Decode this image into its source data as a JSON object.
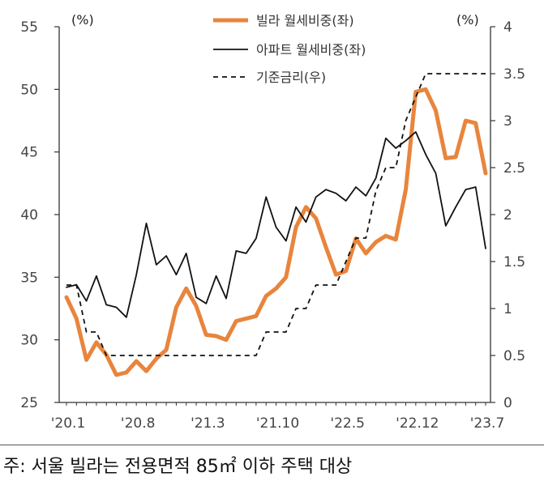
{
  "chart_data": {
    "type": "line",
    "title": "",
    "y_left": {
      "unit": "(%)",
      "ticks": [
        "55",
        "50",
        "45",
        "40",
        "35",
        "30",
        "25"
      ],
      "range": [
        25,
        55
      ]
    },
    "y_right": {
      "unit": "(%)",
      "ticks": [
        "4",
        "3.5",
        "3",
        "2.5",
        "2",
        "1.5",
        "1",
        "0.5",
        "0"
      ],
      "range": [
        0,
        4
      ]
    },
    "x_labels": [
      "'20.1",
      "'20.8",
      "'21.3",
      "'21.10",
      "'22.5",
      "'22.12",
      "'23.7"
    ],
    "x_label_index": [
      0,
      7,
      14,
      21,
      28,
      35,
      42
    ],
    "n_points": 43,
    "series": [
      {
        "name": "빌라 월세비중(좌)",
        "axis": "left",
        "color": "#E8853D",
        "style": "solid-thick",
        "values": [
          33.4,
          31.7,
          28.4,
          29.8,
          28.8,
          27.2,
          27.4,
          28.3,
          27.5,
          28.5,
          29.2,
          32.6,
          34.1,
          32.7,
          30.4,
          30.3,
          30.0,
          31.5,
          31.7,
          31.9,
          33.5,
          34.1,
          35.0,
          39.0,
          40.6,
          39.7,
          37.4,
          35.2,
          35.5,
          38.1,
          36.9,
          37.8,
          38.3,
          38.0,
          42.0,
          49.8,
          50.0,
          48.3,
          44.5,
          44.6,
          47.5,
          47.3,
          43.3
        ]
      },
      {
        "name": "아파트 월세비중(좌)",
        "axis": "left",
        "color": "#111111",
        "style": "solid-thin",
        "values": [
          34.2,
          34.4,
          33.1,
          35.1,
          32.8,
          32.6,
          31.8,
          35.2,
          39.3,
          36.0,
          36.7,
          35.2,
          36.9,
          33.4,
          32.9,
          35.1,
          33.3,
          37.1,
          36.9,
          38.1,
          41.4,
          39.0,
          37.9,
          40.6,
          39.4,
          41.4,
          42.0,
          41.7,
          41.1,
          42.2,
          41.5,
          42.9,
          46.1,
          45.3,
          45.9,
          46.6,
          44.8,
          43.3,
          39.1,
          40.6,
          42.0,
          42.2,
          37.3
        ]
      },
      {
        "name": "기준금리(우)",
        "axis": "right",
        "color": "#111111",
        "style": "dashed",
        "values": [
          1.25,
          1.25,
          0.75,
          0.75,
          0.5,
          0.5,
          0.5,
          0.5,
          0.5,
          0.5,
          0.5,
          0.5,
          0.5,
          0.5,
          0.5,
          0.5,
          0.5,
          0.5,
          0.5,
          0.5,
          0.75,
          0.75,
          0.75,
          1.0,
          1.0,
          1.25,
          1.25,
          1.25,
          1.5,
          1.75,
          1.75,
          2.25,
          2.5,
          2.5,
          3.0,
          3.25,
          3.5,
          3.5,
          3.5,
          3.5,
          3.5,
          3.5,
          3.5
        ]
      }
    ]
  },
  "footnote": "주: 서울 빌라는 전용면적 85㎡ 이하 주택 대상"
}
